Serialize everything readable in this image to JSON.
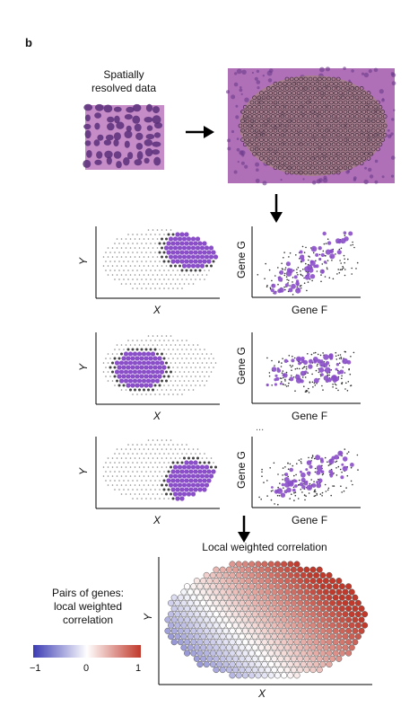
{
  "panel_label": "b",
  "input": {
    "caption_line1": "Spatially",
    "caption_line2": "resolved data"
  },
  "scatter_x_label": "Gene F",
  "scatter_y_label": "Gene G",
  "spatial_x_label": "X",
  "spatial_y_label": "Y",
  "ellipsis": "...",
  "result": {
    "title": "Local weighted correlation",
    "x_label": "X",
    "y_label": "Y"
  },
  "legend": {
    "title_line1": "Pairs of genes:",
    "title_line2": "local weighted",
    "title_line3": "correlation",
    "tick_min": "−1",
    "tick_mid": "0",
    "tick_max": "1",
    "color_low": "#3b3bb3",
    "color_mid": "#ffffff",
    "color_high": "#c0392b"
  },
  "colors": {
    "purple": "#8a4fc8",
    "tissue_base": "#b86fb8",
    "tissue_dark": "#5a2f7a"
  }
}
